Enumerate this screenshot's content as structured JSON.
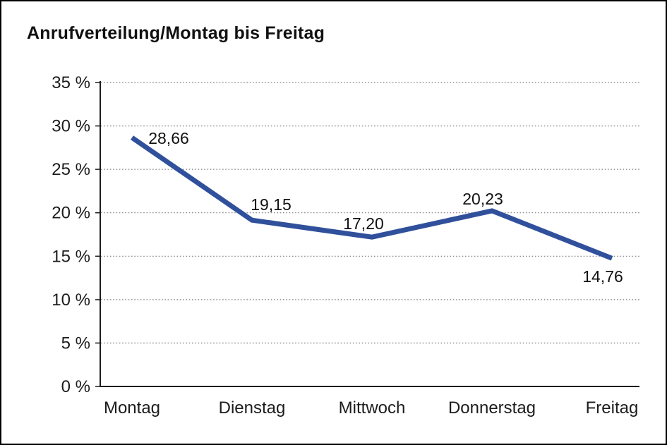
{
  "title": "Anrufverteilung/Montag bis Freitag",
  "colors": {
    "line": "#30509c",
    "grid": "#7d7d7d",
    "axis": "#1c1c1c",
    "text": "#111111",
    "background": "#ffffff",
    "frame": "#000000"
  },
  "chart_data": {
    "type": "line",
    "title": "Anrufverteilung/Montag bis Freitag",
    "categories": [
      "Montag",
      "Dienstag",
      "Mittwoch",
      "Donnerstag",
      "Freitag"
    ],
    "values": [
      28.66,
      19.15,
      17.2,
      20.23,
      14.76
    ],
    "value_labels": [
      "28,66",
      "19,15",
      "17,20",
      "20,23",
      "14,76"
    ],
    "xlabel": "",
    "ylabel": "",
    "ylim": [
      0,
      35
    ],
    "y_tick_step": 5,
    "y_tick_labels": [
      "35 %",
      "30 %",
      "25 %",
      "20 %",
      "15 %",
      "10 %",
      "5 %",
      "0 %"
    ],
    "y_tick_values": [
      35,
      30,
      25,
      20,
      15,
      10,
      5,
      0
    ],
    "grid": "horizontal-dotted",
    "legend": "none"
  }
}
